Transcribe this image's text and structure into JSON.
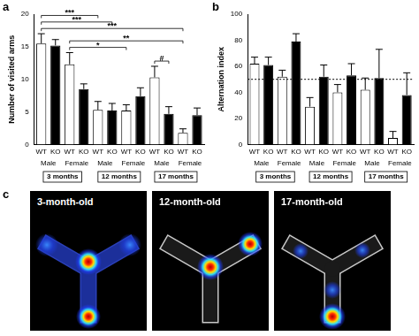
{
  "chart_data": [
    {
      "type": "bar",
      "panel": "a",
      "y_label": "Number of visited arms",
      "categories": [
        "WT",
        "KO",
        "WT",
        "KO",
        "WT",
        "KO",
        "WT",
        "KO",
        "WT",
        "KO",
        "WT",
        "KO"
      ],
      "values": [
        15.5,
        15.2,
        12.3,
        8.5,
        5.3,
        5.2,
        5.2,
        7.4,
        10.3,
        4.7,
        1.8,
        4.5
      ],
      "errors": [
        1.5,
        0.9,
        1.8,
        0.8,
        1.3,
        1.1,
        0.9,
        1.3,
        1.7,
        1.1,
        0.6,
        1.1
      ],
      "colors": [
        "#ffffff",
        "#000000",
        "#ffffff",
        "#000000",
        "#ffffff",
        "#000000",
        "#ffffff",
        "#000000",
        "#ffffff",
        "#000000",
        "#ffffff",
        "#000000"
      ],
      "ylim": [
        0,
        20
      ],
      "yticks": [
        0,
        5,
        10,
        15,
        20
      ],
      "grid": false,
      "groups": [
        {
          "label": "Male",
          "from": 0,
          "to": 1
        },
        {
          "label": "Female",
          "from": 2,
          "to": 3
        },
        {
          "label": "Male",
          "from": 4,
          "to": 5
        },
        {
          "label": "Female",
          "from": 6,
          "to": 7
        },
        {
          "label": "Male",
          "from": 8,
          "to": 9
        },
        {
          "label": "Female",
          "from": 10,
          "to": 11
        }
      ],
      "super_groups": [
        {
          "label": "3 months",
          "from": 0,
          "to": 3
        },
        {
          "label": "12 months",
          "from": 4,
          "to": 7
        },
        {
          "label": "17 months",
          "from": 8,
          "to": 11
        }
      ],
      "brackets": [
        {
          "from": 8,
          "to": 9,
          "label": "#"
        },
        {
          "from": 2,
          "to": 6,
          "label": "*"
        },
        {
          "from": 2,
          "to": 10,
          "label": "**"
        },
        {
          "from": 0,
          "to": 10,
          "label": "***"
        },
        {
          "from": 0,
          "to": 5,
          "label": "***"
        },
        {
          "from": 0,
          "to": 4,
          "label": "***"
        }
      ]
    },
    {
      "type": "bar",
      "panel": "b",
      "y_label": "Alternation index",
      "categories": [
        "WT",
        "KO",
        "WT",
        "KO",
        "WT",
        "KO",
        "WT",
        "KO",
        "WT",
        "KO",
        "WT",
        "KO"
      ],
      "values": [
        62,
        61,
        52,
        79,
        29,
        52,
        40,
        53,
        42,
        51,
        5,
        38
      ],
      "errors": [
        5,
        6,
        5,
        6,
        7,
        9,
        6,
        9,
        9,
        22,
        5,
        17
      ],
      "colors": [
        "#ffffff",
        "#000000",
        "#ffffff",
        "#000000",
        "#ffffff",
        "#000000",
        "#ffffff",
        "#000000",
        "#ffffff",
        "#000000",
        "#ffffff",
        "#000000"
      ],
      "ylim": [
        0,
        100
      ],
      "yticks": [
        0,
        20,
        40,
        60,
        80,
        100
      ],
      "grid": false,
      "hline": 50,
      "groups": [
        {
          "label": "Male",
          "from": 0,
          "to": 1
        },
        {
          "label": "Female",
          "from": 2,
          "to": 3
        },
        {
          "label": "Male",
          "from": 4,
          "to": 5
        },
        {
          "label": "Female",
          "from": 6,
          "to": 7
        },
        {
          "label": "Male",
          "from": 8,
          "to": 9
        },
        {
          "label": "Female",
          "from": 10,
          "to": 11
        }
      ],
      "super_groups": [
        {
          "label": "3 months",
          "from": 0,
          "to": 3
        },
        {
          "label": "12 months",
          "from": 4,
          "to": 7
        },
        {
          "label": "17 months",
          "from": 8,
          "to": 11
        }
      ]
    }
  ],
  "image_panel": {
    "panel": "c",
    "titles": [
      "3-month-old",
      "12-month-old",
      "17-month-old"
    ]
  }
}
